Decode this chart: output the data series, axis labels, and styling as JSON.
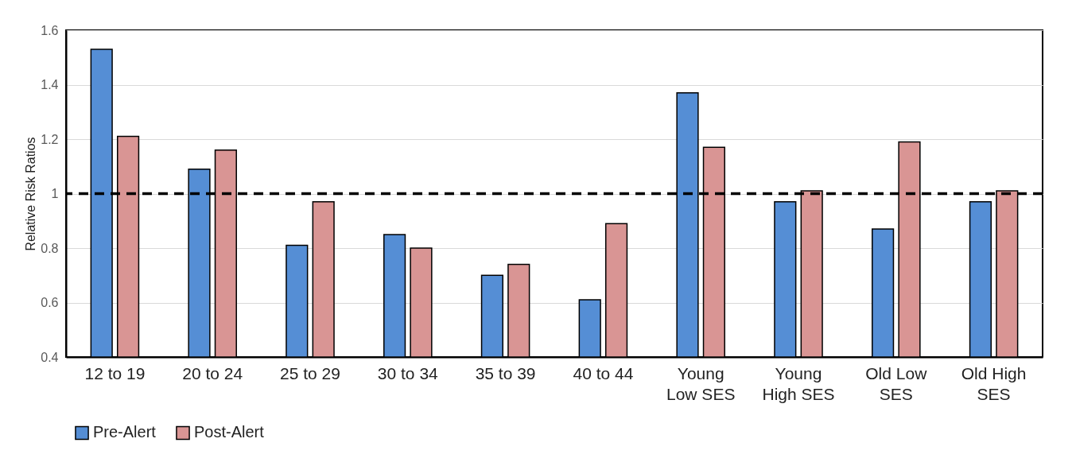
{
  "chart_data": {
    "type": "bar",
    "categories": [
      "12 to 19",
      "20 to 24",
      "25 to 29",
      "30 to 34",
      "35 to 39",
      "40 to 44",
      "Young Low SES",
      "Young High SES",
      "Old Low SES",
      "Old High SES"
    ],
    "series": [
      {
        "name": "Pre-Alert",
        "color": "#558ed5",
        "values": [
          1.53,
          1.09,
          0.81,
          0.85,
          0.7,
          0.61,
          1.37,
          0.97,
          0.87,
          0.97
        ]
      },
      {
        "name": "Post-Alert",
        "color": "#d99594",
        "values": [
          1.21,
          1.16,
          0.97,
          0.8,
          0.74,
          0.89,
          1.17,
          1.01,
          1.19,
          1.01
        ]
      }
    ],
    "ylabel": "Relative Risk Ratios",
    "ylim": [
      0.4,
      1.6
    ],
    "yticks": [
      0.4,
      0.6,
      0.8,
      1,
      1.2,
      1.4,
      1.6
    ],
    "ref_lines": [
      {
        "axis": "y",
        "value": 1,
        "color": "#000000",
        "line_style": "dashed"
      }
    ],
    "grid": "y",
    "legend": "bottom"
  }
}
